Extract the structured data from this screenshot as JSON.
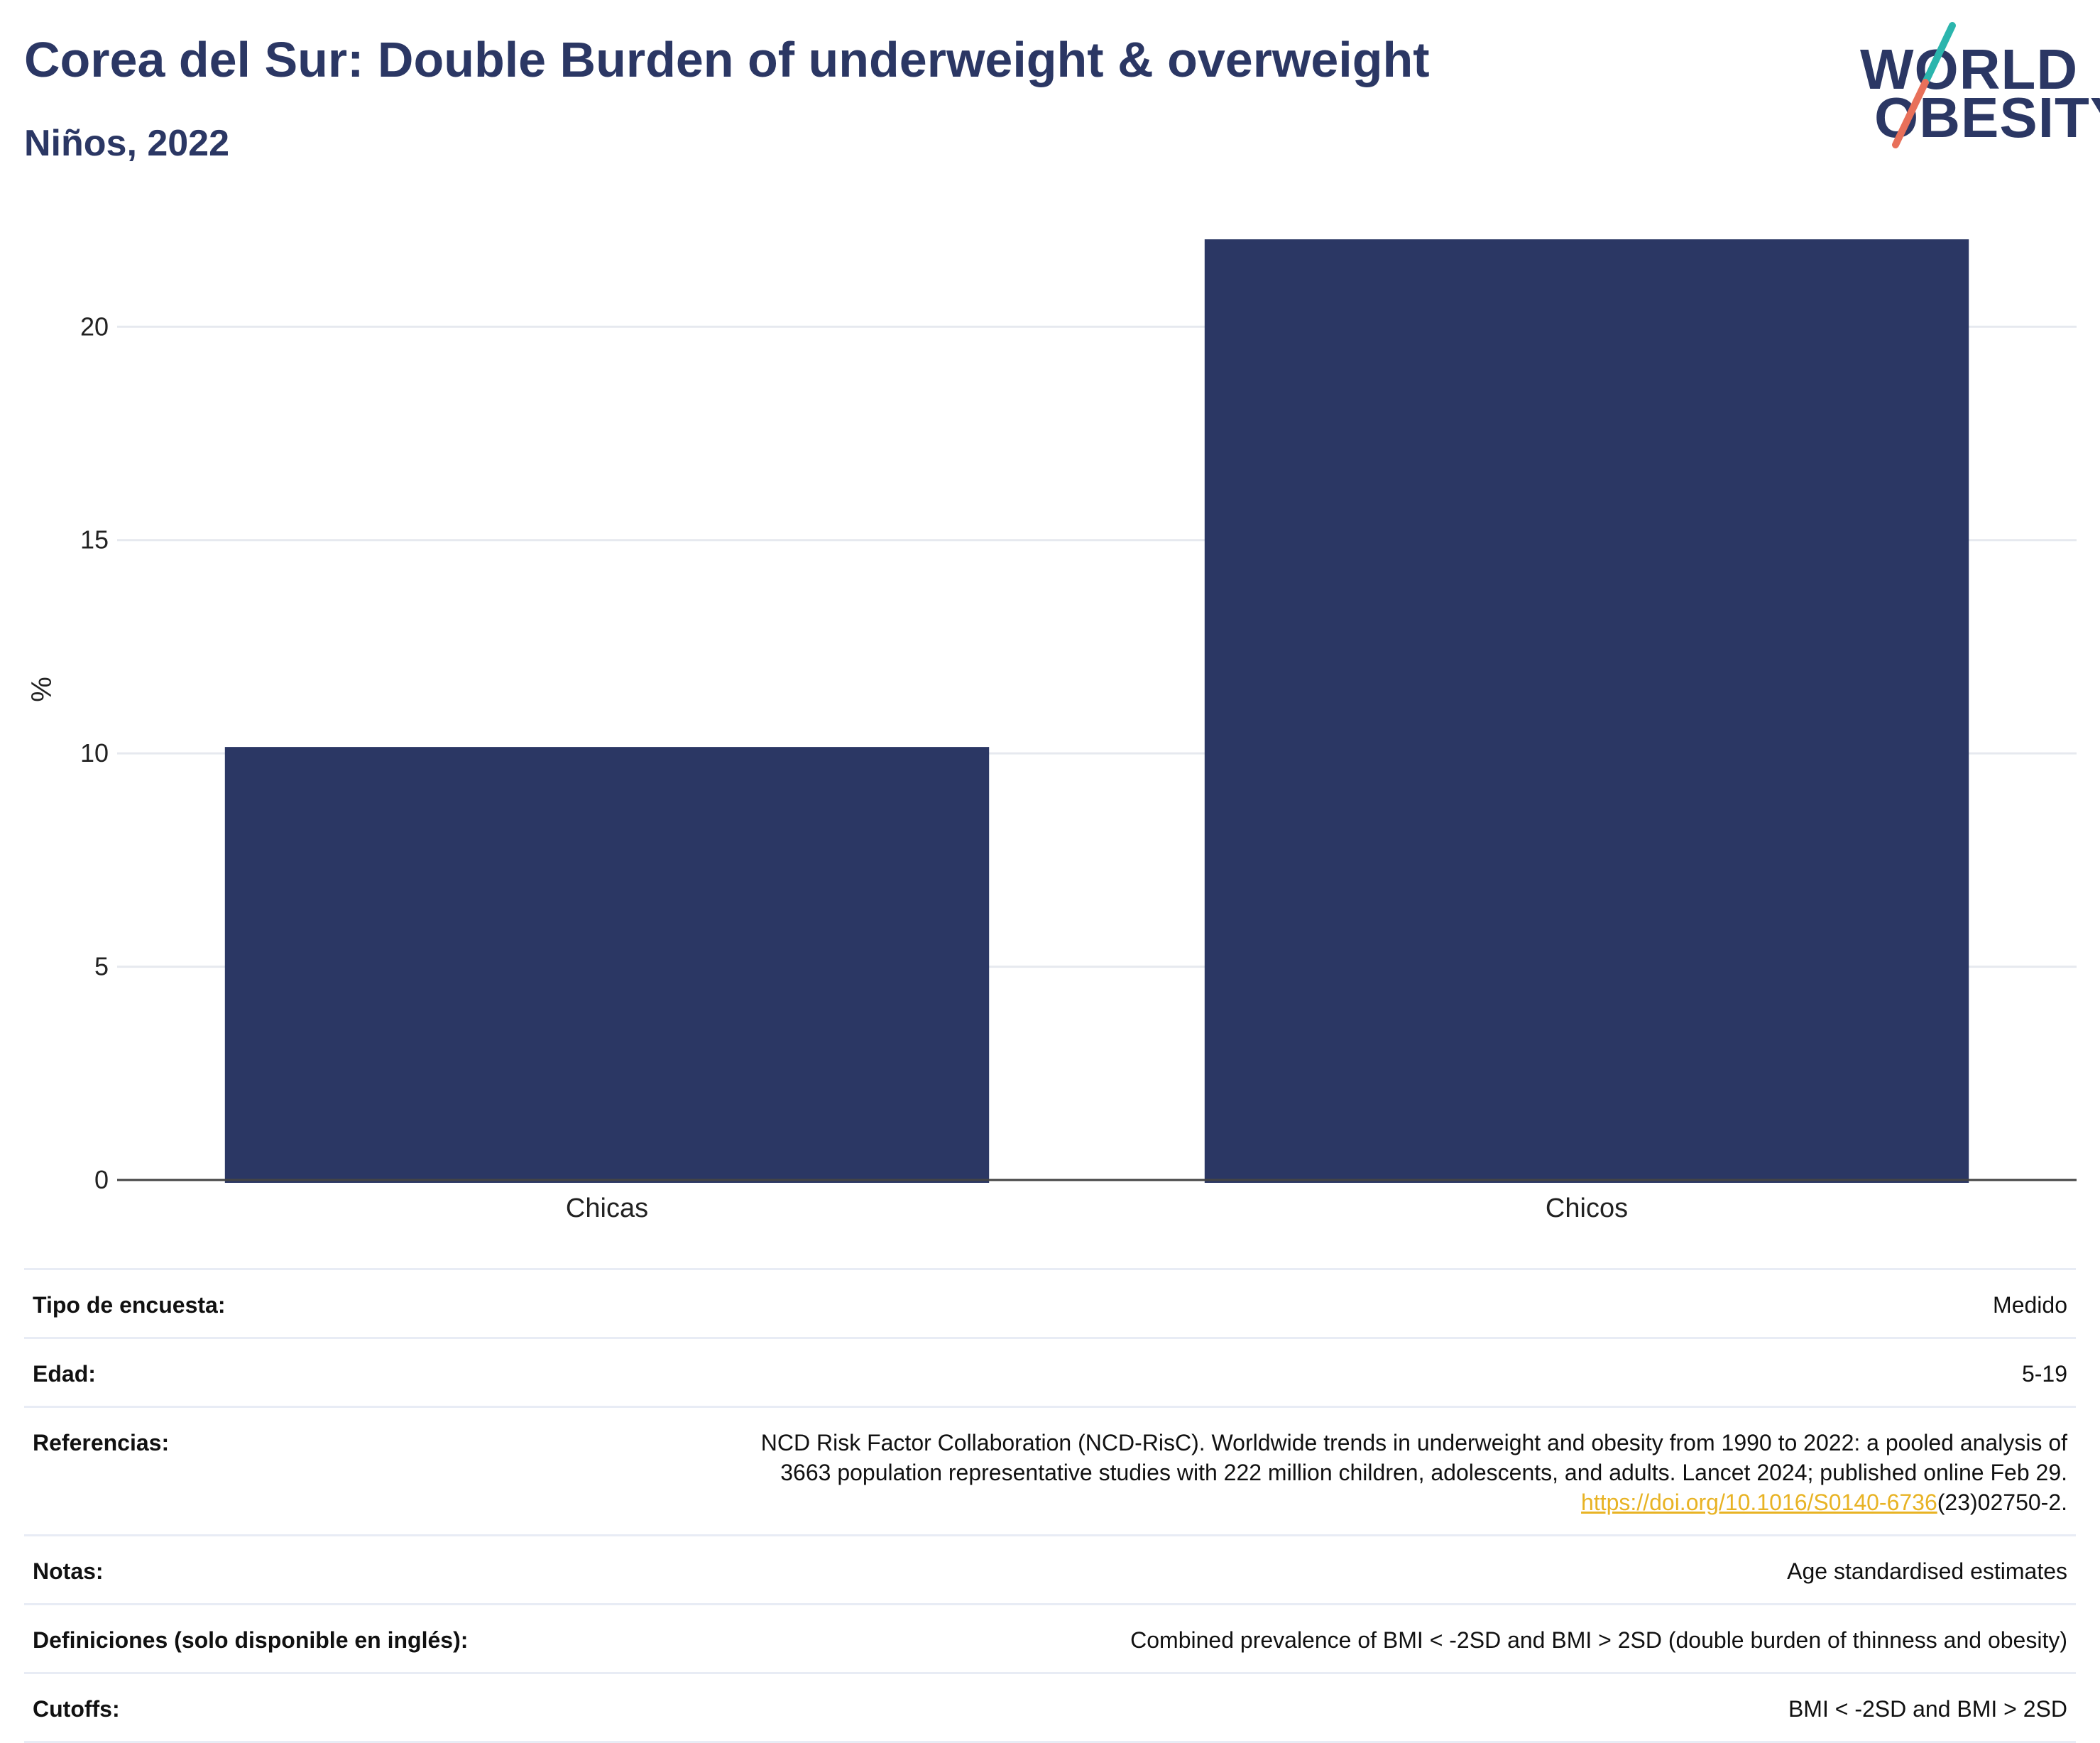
{
  "header": {
    "title": "Corea del Sur: Double Burden of underweight & overweight",
    "subtitle": "Niños, 2022"
  },
  "logo": {
    "line1": "WORLD",
    "line2": "OBESITY",
    "colors": {
      "text": "#2b3764",
      "slash_top": "#2bb5ad",
      "slash_bottom": "#e8705a"
    }
  },
  "chart_data": {
    "type": "bar",
    "categories": [
      "Chicas",
      "Chicos"
    ],
    "values": [
      10.15,
      22.05
    ],
    "title": "",
    "xlabel": "",
    "ylabel": "%",
    "ylim": [
      0,
      23
    ],
    "yticks": [
      0,
      5,
      10,
      15,
      20
    ],
    "grid": true,
    "bar_color": "#2b3764"
  },
  "meta": {
    "rows": [
      {
        "label": "Tipo de encuesta:",
        "value": "Medido"
      },
      {
        "label": "Edad:",
        "value": "5-19"
      },
      {
        "label": "Referencias:",
        "value_line1": "NCD Risk Factor Collaboration (NCD-RisC). Worldwide trends in underweight and obesity from 1990 to 2022: a pooled analysis of",
        "value_line2": "3663 population representative studies with 222 million children, adolescents, and adults. Lancet 2024; published online Feb 29.",
        "link_text": "https://doi.org/10.1016/S0140-6736",
        "link_suffix": "(23)02750-2."
      },
      {
        "label": "Notas:",
        "value": "Age standardised estimates"
      },
      {
        "label": "Definiciones (solo disponible en inglés):",
        "value": "Combined prevalence of BMI < -2SD and BMI > 2SD (double burden of thinness and obesity)"
      },
      {
        "label": "Cutoffs:",
        "value": "BMI < -2SD and BMI > 2SD"
      }
    ]
  }
}
